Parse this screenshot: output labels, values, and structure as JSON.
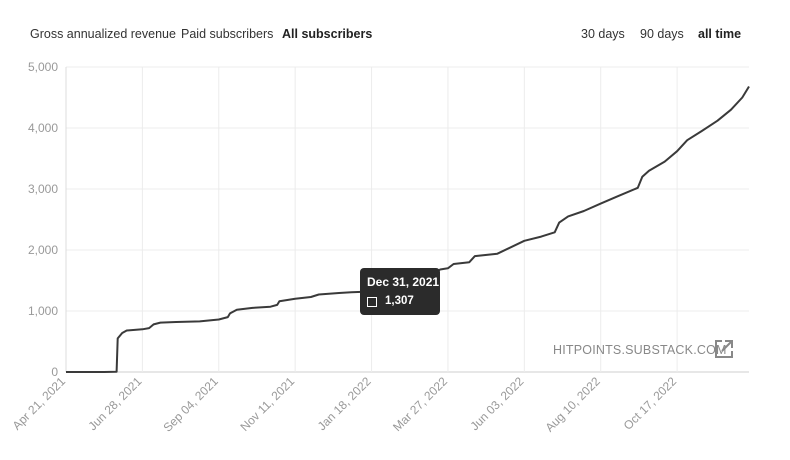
{
  "tabs": {
    "metric": [
      {
        "label": "Gross annualized revenue",
        "active": false
      },
      {
        "label": "Paid subscribers",
        "active": false
      },
      {
        "label": "All subscribers",
        "active": true
      }
    ],
    "range": [
      {
        "label": "30 days",
        "active": false
      },
      {
        "label": "90 days",
        "active": false
      },
      {
        "label": "all time",
        "active": true
      }
    ]
  },
  "tooltip": {
    "date": "Dec 31, 2021",
    "value": "1,307"
  },
  "watermark": {
    "text": "HITPOINTS.SUBSTACK.COM",
    "icon": "external-link-icon"
  },
  "colors": {
    "line": "#3a3a3a",
    "grid": "#ececec",
    "axis_text": "#999999",
    "tooltip_bg": "#2b2b2b"
  },
  "chart_data": {
    "type": "line",
    "title": "",
    "xlabel": "",
    "ylabel": "",
    "ylim": [
      0,
      5000
    ],
    "yticks": [
      0,
      1000,
      2000,
      3000,
      4000,
      5000
    ],
    "ytick_labels": [
      "0",
      "1,000",
      "2,000",
      "3,000",
      "4,000",
      "5,000"
    ],
    "xticks": [
      "2021-04-21",
      "2021-06-28",
      "2021-09-04",
      "2021-11-11",
      "2022-01-18",
      "2022-03-27",
      "2022-06-03",
      "2022-08-10",
      "2022-10-17"
    ],
    "xtick_labels": [
      "Apr 21, 2021",
      "Jun 28, 2021",
      "Sep 04, 2021",
      "Nov 11, 2021",
      "Jan 18, 2022",
      "Mar 27, 2022",
      "Jun 03, 2022",
      "Aug 10, 2022",
      "Oct 17, 2022"
    ],
    "xlim": [
      "2021-04-21",
      "2022-12-20"
    ],
    "grid": true,
    "series": [
      {
        "points": [
          [
            "2021-04-21",
            0
          ],
          [
            "2021-05-25",
            0
          ],
          [
            "2021-06-05",
            5
          ],
          [
            "2021-06-06",
            550
          ],
          [
            "2021-06-10",
            640
          ],
          [
            "2021-06-14",
            680
          ],
          [
            "2021-06-28",
            700
          ],
          [
            "2021-07-04",
            720
          ],
          [
            "2021-07-08",
            780
          ],
          [
            "2021-07-14",
            810
          ],
          [
            "2021-07-28",
            820
          ],
          [
            "2021-08-18",
            830
          ],
          [
            "2021-09-04",
            860
          ],
          [
            "2021-09-12",
            900
          ],
          [
            "2021-09-14",
            960
          ],
          [
            "2021-09-20",
            1020
          ],
          [
            "2021-10-04",
            1050
          ],
          [
            "2021-10-20",
            1070
          ],
          [
            "2021-10-26",
            1100
          ],
          [
            "2021-10-28",
            1160
          ],
          [
            "2021-11-11",
            1200
          ],
          [
            "2021-11-25",
            1230
          ],
          [
            "2021-12-02",
            1270
          ],
          [
            "2021-12-20",
            1295
          ],
          [
            "2021-12-31",
            1307
          ],
          [
            "2022-01-18",
            1320
          ],
          [
            "2022-02-05",
            1350
          ],
          [
            "2022-02-20",
            1420
          ],
          [
            "2022-03-08",
            1520
          ],
          [
            "2022-03-20",
            1680
          ],
          [
            "2022-03-27",
            1700
          ],
          [
            "2022-04-01",
            1770
          ],
          [
            "2022-04-15",
            1800
          ],
          [
            "2022-04-20",
            1900
          ],
          [
            "2022-05-10",
            1940
          ],
          [
            "2022-06-03",
            2150
          ],
          [
            "2022-06-18",
            2220
          ],
          [
            "2022-06-30",
            2290
          ],
          [
            "2022-07-04",
            2450
          ],
          [
            "2022-07-12",
            2550
          ],
          [
            "2022-07-26",
            2640
          ],
          [
            "2022-08-10",
            2760
          ],
          [
            "2022-08-25",
            2880
          ],
          [
            "2022-09-12",
            3020
          ],
          [
            "2022-09-16",
            3200
          ],
          [
            "2022-09-22",
            3300
          ],
          [
            "2022-10-06",
            3450
          ],
          [
            "2022-10-17",
            3620
          ],
          [
            "2022-10-26",
            3800
          ],
          [
            "2022-11-08",
            3950
          ],
          [
            "2022-11-22",
            4120
          ],
          [
            "2022-12-04",
            4300
          ],
          [
            "2022-12-14",
            4500
          ],
          [
            "2022-12-20",
            4680
          ]
        ]
      }
    ]
  }
}
